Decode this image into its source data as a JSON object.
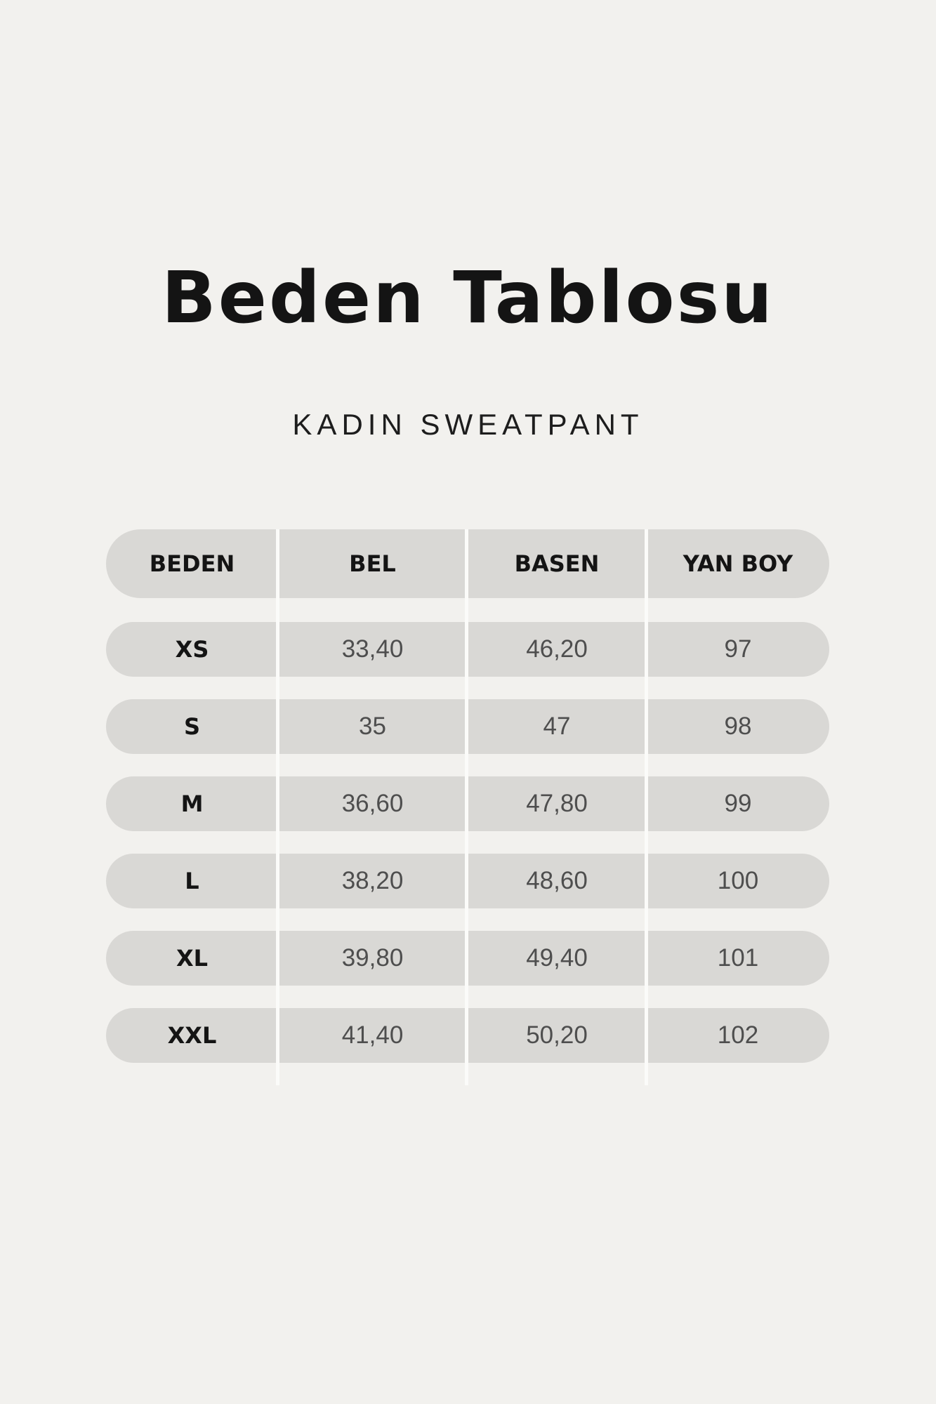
{
  "chart_data": {
    "type": "table",
    "title": "Beden Tablosu",
    "subtitle": "KADIN SWEATPANT",
    "columns": [
      "BEDEN",
      "BEL",
      "BASEN",
      "YAN BOY"
    ],
    "rows": [
      [
        "XS",
        "33,40",
        "46,20",
        "97"
      ],
      [
        "S",
        "35",
        "47",
        "98"
      ],
      [
        "M",
        "36,60",
        "47,80",
        "99"
      ],
      [
        "L",
        "38,20",
        "48,60",
        "100"
      ],
      [
        "XL",
        "39,80",
        "49,40",
        "101"
      ],
      [
        "XXL",
        "41,40",
        "50,20",
        "102"
      ]
    ]
  },
  "colors": {
    "background": "#f2f1ee",
    "cell": "#d9d8d5",
    "divider": "#fbfbf9",
    "heading_text": "#141414",
    "value_text": "#4e4e4e"
  }
}
